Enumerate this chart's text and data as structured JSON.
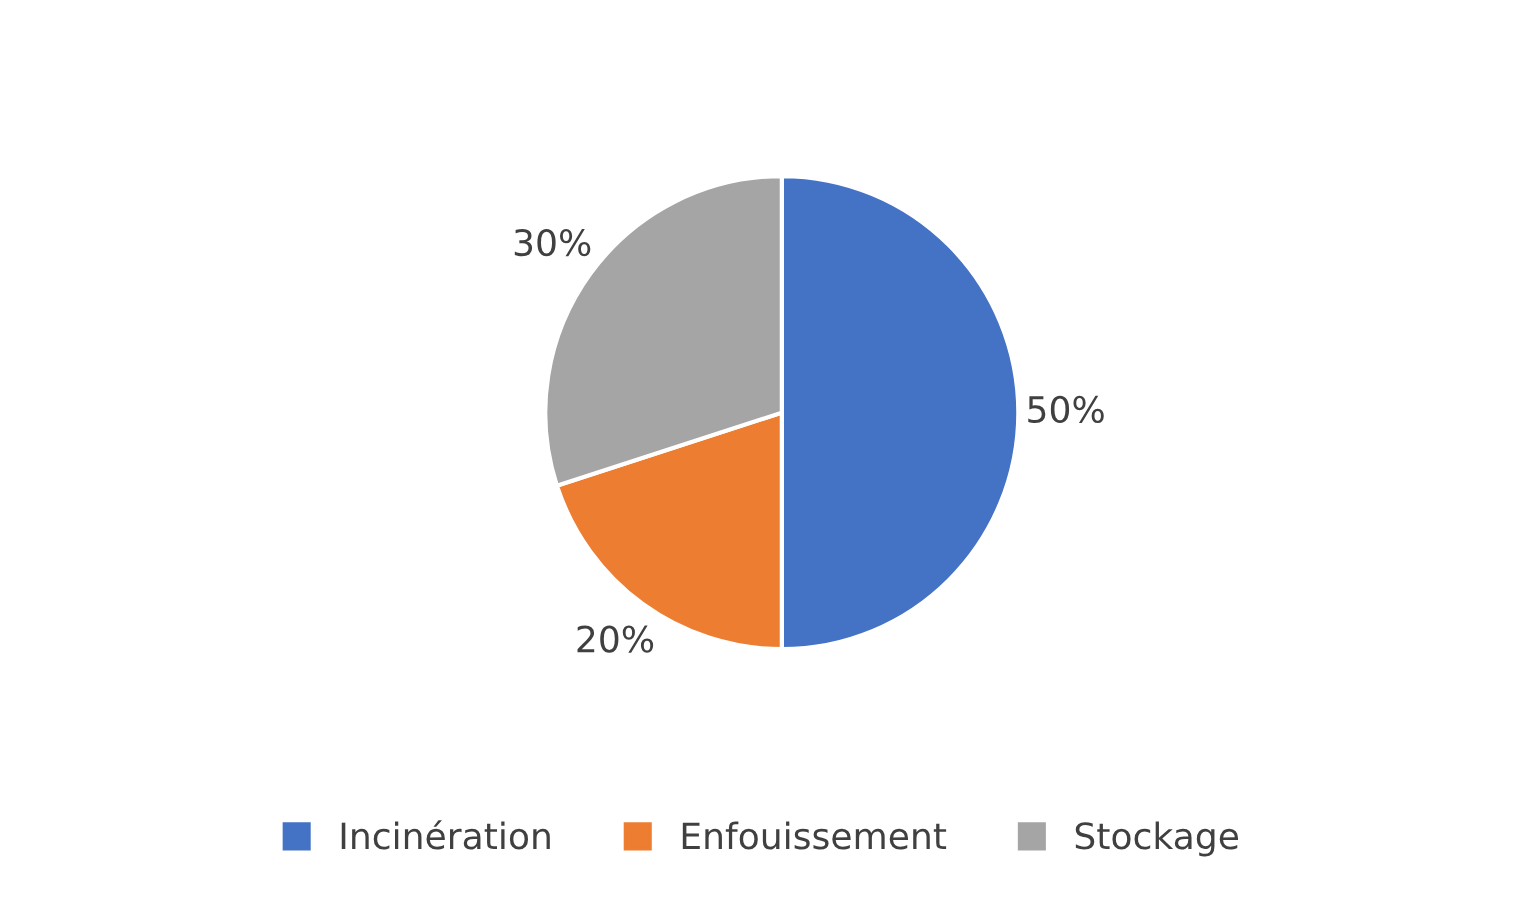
{
  "chart_data": {
    "type": "pie",
    "categories": [
      "Incinération",
      "Enfouissement",
      "Stockage"
    ],
    "values": [
      50,
      20,
      30
    ],
    "value_labels": [
      "50%",
      "20%",
      "30%"
    ],
    "colors": [
      "#4472c4",
      "#ed7d31",
      "#a5a5a5"
    ],
    "legend": "bottom"
  }
}
